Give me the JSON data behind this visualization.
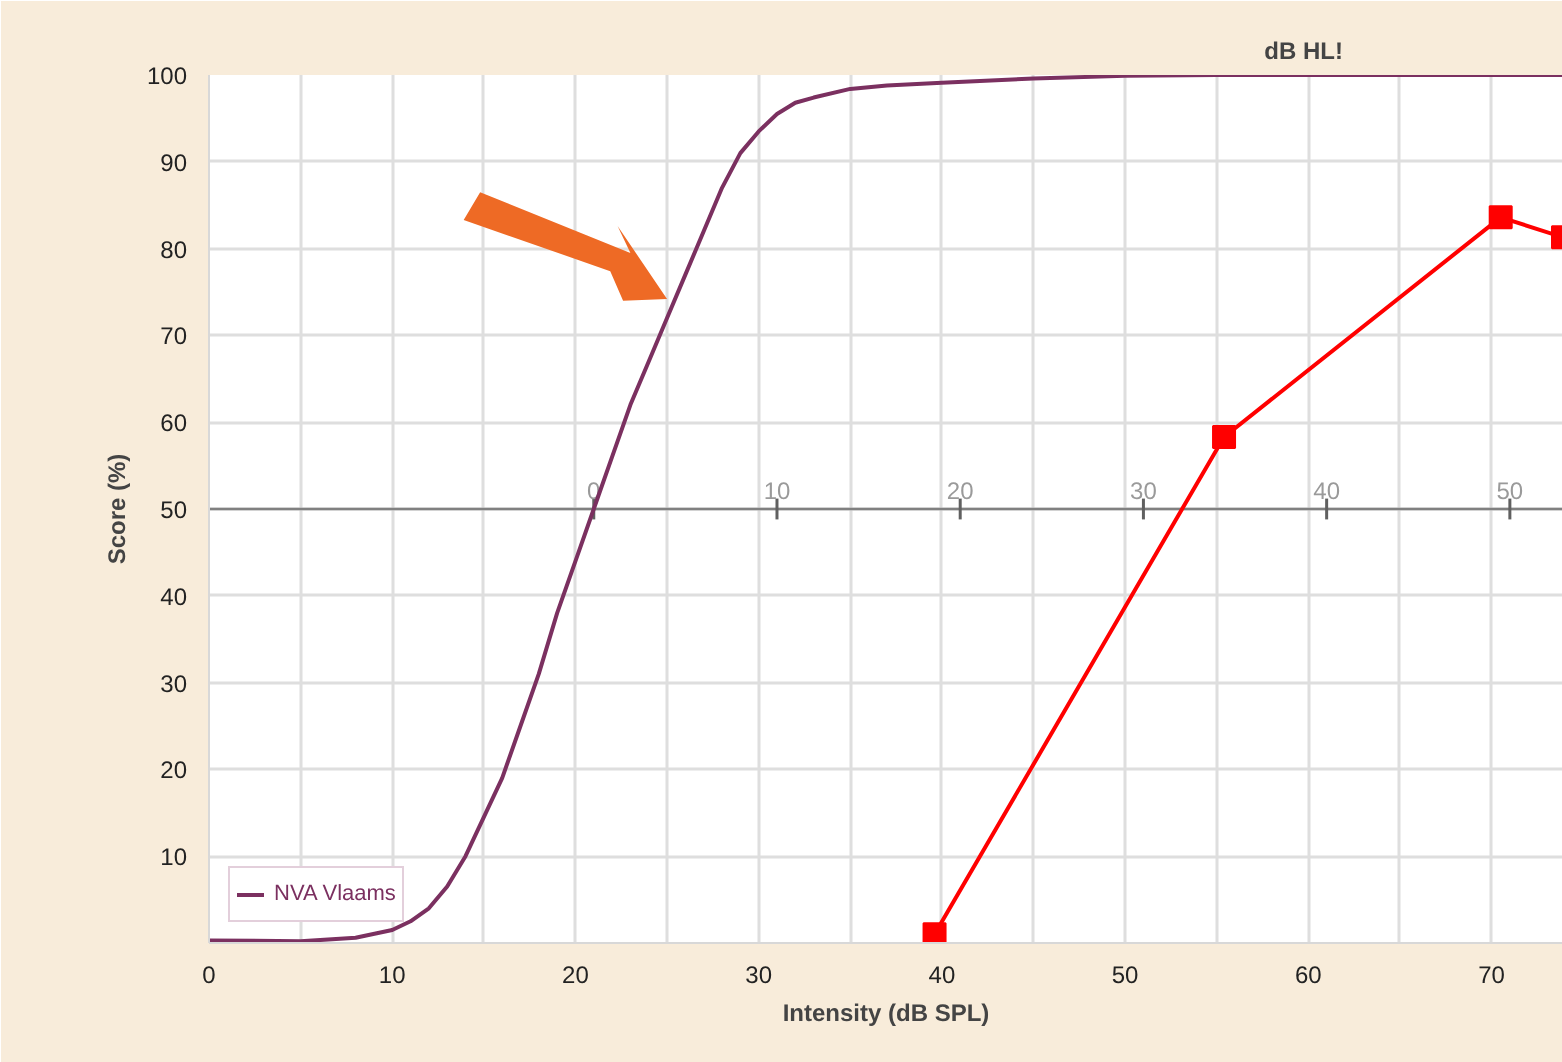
{
  "chart_data": {
    "type": "line",
    "xlabel": "Intensity (dB SPL)",
    "ylabel": "Score (%)",
    "x2label": "dB HL!",
    "xlim": [
      0,
      73.9
    ],
    "xticks": [
      0,
      10,
      20,
      30,
      40,
      50,
      60,
      70
    ],
    "ylim": [
      0,
      100
    ],
    "yticks": [
      {
        "value": 0,
        "label": null
      },
      10,
      20,
      30,
      40,
      50,
      60,
      70,
      80,
      90,
      100
    ],
    "x2lim": [
      -21,
      52.9
    ],
    "x2ticks": [
      0,
      10,
      20,
      30,
      40,
      50
    ],
    "grid": true,
    "legend": "bottom left",
    "series": [
      {
        "name": "NVA Vlaams",
        "color": "#7b3060",
        "marker": "none",
        "x": [
          0,
          5,
          8,
          10,
          11,
          12,
          13,
          14,
          15,
          16,
          17,
          18,
          19,
          20,
          21,
          22,
          23,
          24,
          25,
          26,
          27,
          28,
          29,
          30,
          31,
          32,
          33,
          35,
          37,
          40,
          45,
          50,
          55,
          73.9
        ],
        "values": [
          0.3,
          0.2,
          0.6,
          1.5,
          2.5,
          4,
          6.5,
          10,
          14.5,
          19,
          25,
          31,
          38,
          44,
          50,
          56,
          62,
          67,
          72,
          77,
          82,
          87,
          91,
          93.5,
          95.5,
          96.8,
          97.4,
          98.4,
          98.8,
          99.1,
          99.6,
          99.9,
          100,
          100
        ]
      },
      {
        "color": "#ff0000",
        "marker": "square",
        "x": [
          39.6,
          55.4,
          70.5,
          73.9
        ],
        "values": [
          1,
          58.3,
          83.6,
          81.3
        ]
      }
    ]
  }
}
